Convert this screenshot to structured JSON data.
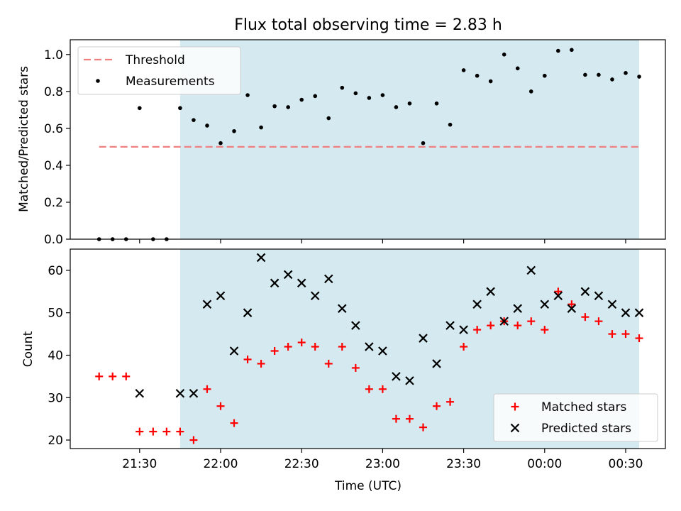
{
  "title": "Flux total observing time = 2.83 h",
  "colors": {
    "shade": "#d5eaf0",
    "threshold": "#f08080",
    "measurement": "#000000",
    "matched": "#ff0000",
    "predicted": "#000000"
  },
  "chart_data": [
    {
      "type": "scatter",
      "panel": "top",
      "ylabel": "Matched/Predicted stars",
      "ylim": [
        0,
        1.08
      ],
      "yticks": [
        0.0,
        0.2,
        0.4,
        0.6,
        0.8,
        1.0
      ],
      "ytick_labels": [
        "0.0",
        "0.2",
        "0.4",
        "0.6",
        "0.8",
        "1.0"
      ],
      "legend_position": "upper-left",
      "shaded_interval": [
        "21:45",
        "00:35"
      ],
      "threshold": {
        "name": "Threshold",
        "value": 0.5,
        "x_range": [
          "21:15",
          "00:35"
        ]
      },
      "series": [
        {
          "name": "Measurements",
          "x": [
            "21:15",
            "21:20",
            "21:25",
            "21:30",
            "21:35",
            "21:40",
            "21:45",
            "21:50",
            "21:55",
            "22:00",
            "22:05",
            "22:10",
            "22:15",
            "22:20",
            "22:25",
            "22:30",
            "22:35",
            "22:40",
            "22:45",
            "22:50",
            "22:55",
            "23:00",
            "23:05",
            "23:10",
            "23:15",
            "23:20",
            "23:25",
            "23:30",
            "23:35",
            "23:40",
            "23:45",
            "23:50",
            "23:55",
            "00:00",
            "00:05",
            "00:10",
            "00:15",
            "00:20",
            "00:25",
            "00:30",
            "00:35"
          ],
          "y": [
            0.0,
            0.0,
            0.0,
            0.71,
            0.0,
            0.0,
            0.71,
            0.645,
            0.615,
            0.52,
            0.585,
            0.78,
            0.605,
            0.72,
            0.715,
            0.755,
            0.775,
            0.655,
            0.82,
            0.79,
            0.765,
            0.78,
            0.715,
            0.735,
            0.52,
            0.735,
            0.62,
            0.915,
            0.885,
            0.855,
            1.0,
            0.925,
            0.8,
            0.885,
            1.02,
            1.025,
            0.89,
            0.89,
            0.865,
            0.9,
            0.88
          ]
        }
      ]
    },
    {
      "type": "scatter",
      "panel": "bottom",
      "xlabel": "Time (UTC)",
      "ylabel": "Count",
      "ylim": [
        18,
        65
      ],
      "yticks": [
        20,
        30,
        40,
        50,
        60
      ],
      "xticks": [
        "21:30",
        "22:00",
        "22:30",
        "23:00",
        "23:30",
        "00:00",
        "00:30"
      ],
      "legend_position": "lower-right",
      "shaded_interval": [
        "21:45",
        "00:35"
      ],
      "series": [
        {
          "name": "Matched stars",
          "marker": "+",
          "x": [
            "21:15",
            "21:20",
            "21:25",
            "21:30",
            "21:35",
            "21:40",
            "21:45",
            "21:50",
            "21:55",
            "22:00",
            "22:05",
            "22:10",
            "22:15",
            "22:20",
            "22:25",
            "22:30",
            "22:35",
            "22:40",
            "22:45",
            "22:50",
            "22:55",
            "23:00",
            "23:05",
            "23:10",
            "23:15",
            "23:20",
            "23:25",
            "23:30",
            "23:35",
            "23:40",
            "23:45",
            "23:50",
            "23:55",
            "00:00",
            "00:05",
            "00:10",
            "00:15",
            "00:20",
            "00:25",
            "00:30",
            "00:35"
          ],
          "y": [
            35,
            35,
            35,
            22,
            22,
            22,
            22,
            20,
            32,
            28,
            24,
            39,
            38,
            41,
            42,
            43,
            42,
            38,
            42,
            37,
            32,
            32,
            25,
            25,
            23,
            28,
            29,
            42,
            46,
            47,
            48,
            47,
            48,
            46,
            55,
            52,
            49,
            48,
            45,
            45,
            44
          ]
        },
        {
          "name": "Predicted stars",
          "marker": "x",
          "x": [
            "21:30",
            "21:45",
            "21:50",
            "21:55",
            "22:00",
            "22:05",
            "22:10",
            "22:15",
            "22:20",
            "22:25",
            "22:30",
            "22:35",
            "22:40",
            "22:45",
            "22:50",
            "22:55",
            "23:00",
            "23:05",
            "23:10",
            "23:15",
            "23:20",
            "23:25",
            "23:30",
            "23:35",
            "23:40",
            "23:45",
            "23:50",
            "23:55",
            "00:00",
            "00:05",
            "00:10",
            "00:15",
            "00:20",
            "00:25",
            "00:30",
            "00:35"
          ],
          "y": [
            31,
            31,
            31,
            52,
            54,
            41,
            50,
            63,
            57,
            59,
            57,
            54,
            58,
            51,
            47,
            42,
            41,
            35,
            34,
            44,
            38,
            47,
            46,
            52,
            55,
            48,
            51,
            60,
            52,
            54,
            51,
            55,
            54,
            52,
            50,
            50
          ]
        }
      ]
    }
  ]
}
